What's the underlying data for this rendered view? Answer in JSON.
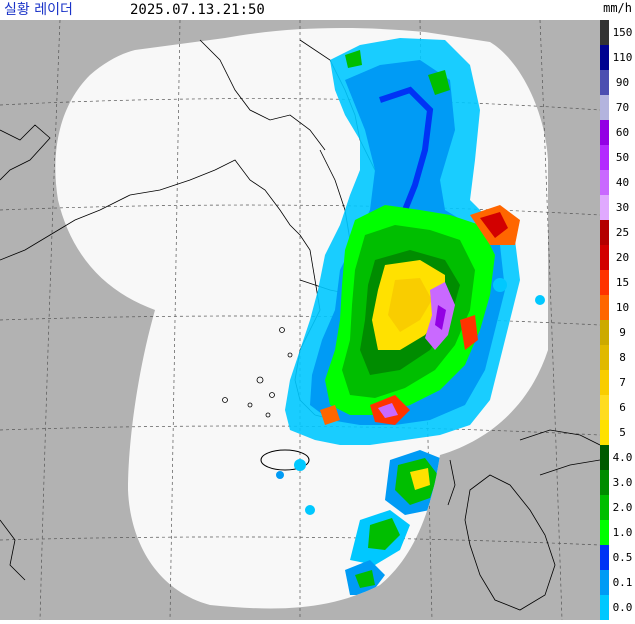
{
  "header": {
    "title": "실황 레이더",
    "timestamp": "2025.07.13.21:50",
    "unit": "mm/h"
  },
  "legend": {
    "levels": [
      {
        "label": "150",
        "color": "#333333"
      },
      {
        "label": "110",
        "color": "#000390"
      },
      {
        "label": "90",
        "color": "#4c4eb1"
      },
      {
        "label": "70",
        "color": "#b3b4de"
      },
      {
        "label": "60",
        "color": "#9300e4"
      },
      {
        "label": "50",
        "color": "#b329ff"
      },
      {
        "label": "40",
        "color": "#c969ff"
      },
      {
        "label": "30",
        "color": "#e0a9ff"
      },
      {
        "label": "25",
        "color": "#b40000"
      },
      {
        "label": "20",
        "color": "#d20000"
      },
      {
        "label": "15",
        "color": "#ff3300"
      },
      {
        "label": "10",
        "color": "#ff6600"
      },
      {
        "label": "9",
        "color": "#ccaa00"
      },
      {
        "label": "8",
        "color": "#e0b900"
      },
      {
        "label": "7",
        "color": "#f9cd00"
      },
      {
        "label": "6",
        "color": "#ffdc1f"
      },
      {
        "label": "5",
        "color": "#ffe100"
      },
      {
        "label": "4.0",
        "color": "#005a00"
      },
      {
        "label": "3.0",
        "color": "#008c00"
      },
      {
        "label": "2.0",
        "color": "#00be00"
      },
      {
        "label": "1.0",
        "color": "#00ff00"
      },
      {
        "label": "0.5",
        "color": "#0033f5"
      },
      {
        "label": "0.1",
        "color": "#009bf5"
      },
      {
        "label": "0.0",
        "color": "#00c8ff"
      }
    ]
  },
  "map": {
    "background_color": "#b2b2b2",
    "coverage_color": "#f8f8f8",
    "coastline_color": "#000000"
  }
}
